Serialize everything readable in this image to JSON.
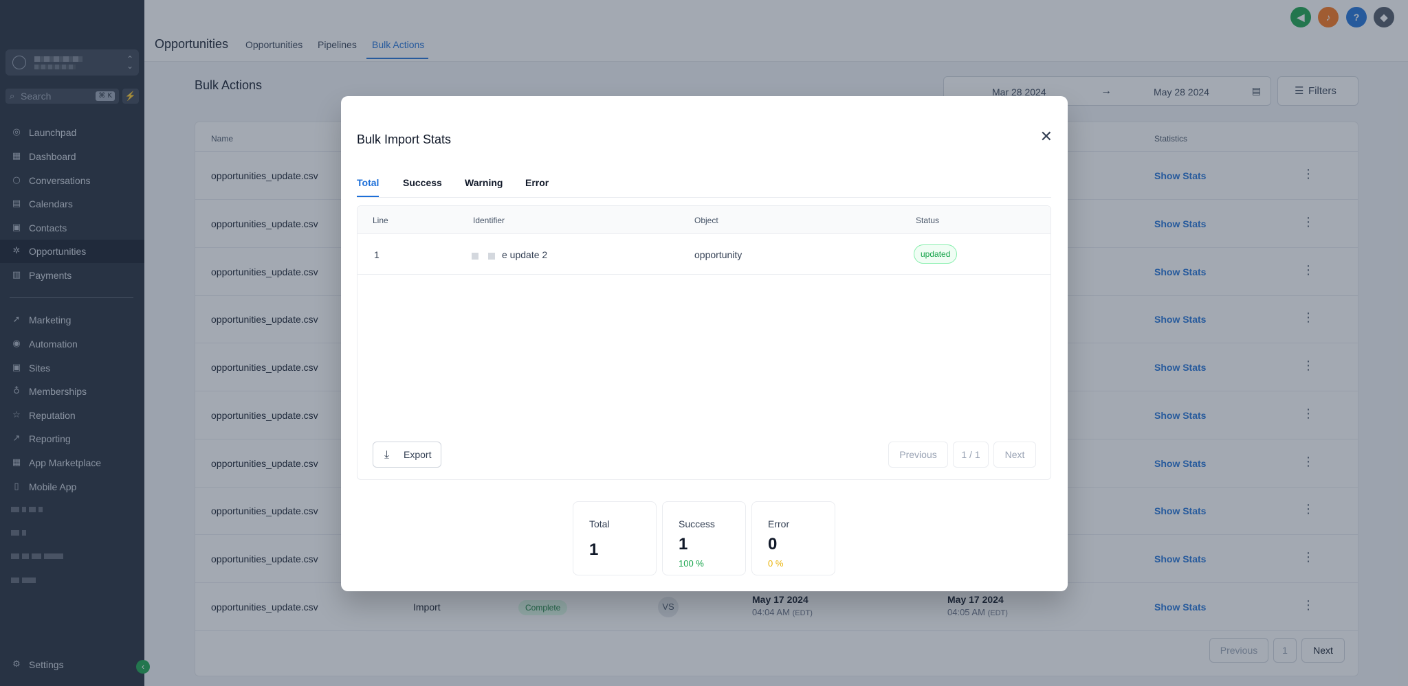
{
  "sidebar": {
    "search_placeholder": "Search",
    "search_shortcut": "⌘ K",
    "items": [
      {
        "label": "Launchpad",
        "icon": "rocket-icon"
      },
      {
        "label": "Dashboard",
        "icon": "dashboard-icon"
      },
      {
        "label": "Conversations",
        "icon": "chat-icon"
      },
      {
        "label": "Calendars",
        "icon": "calendar-icon"
      },
      {
        "label": "Contacts",
        "icon": "contacts-icon"
      },
      {
        "label": "Opportunities",
        "icon": "opportunities-icon",
        "active": true
      },
      {
        "label": "Payments",
        "icon": "payments-icon"
      },
      {
        "label": "Marketing",
        "icon": "marketing-icon"
      },
      {
        "label": "Automation",
        "icon": "automation-icon"
      },
      {
        "label": "Sites",
        "icon": "sites-icon"
      },
      {
        "label": "Memberships",
        "icon": "memberships-icon"
      },
      {
        "label": "Reputation",
        "icon": "star-icon"
      },
      {
        "label": "Reporting",
        "icon": "reporting-icon"
      },
      {
        "label": "App Marketplace",
        "icon": "grid-icon"
      },
      {
        "label": "Mobile App",
        "icon": "mobile-icon"
      }
    ],
    "settings_label": "Settings"
  },
  "header": {
    "page_title": "Opportunities",
    "tabs": [
      "Opportunities",
      "Pipelines",
      "Bulk Actions"
    ],
    "active_tab": "Bulk Actions",
    "icon_colors": {
      "megaphone": "#16a34a",
      "bell": "#f97316",
      "help": "#1d6fd8"
    }
  },
  "main": {
    "section_title": "Bulk Actions",
    "date_from": "Mar 28 2024",
    "date_to": "May 28 2024",
    "filters_label": "Filters",
    "columns": {
      "name": "Name",
      "statistics": "Statistics"
    },
    "rows": [
      {
        "name": "opportunities_update.csv",
        "stats": "Show Stats"
      },
      {
        "name": "opportunities_update.csv",
        "stats": "Show Stats"
      },
      {
        "name": "opportunities_update.csv",
        "stats": "Show Stats"
      },
      {
        "name": "opportunities_update.csv",
        "stats": "Show Stats"
      },
      {
        "name": "opportunities_update.csv",
        "stats": "Show Stats"
      },
      {
        "name": "opportunities_update.csv",
        "stats": "Show Stats"
      },
      {
        "name": "opportunities_update.csv",
        "stats": "Show Stats"
      },
      {
        "name": "opportunities_update.csv",
        "stats": "Show Stats"
      },
      {
        "name": "opportunities_update.csv",
        "stats": "Show Stats"
      },
      {
        "name": "opportunities_update.csv",
        "type": "Import",
        "status": "Complete",
        "user_initials": "VS",
        "created_date": "May 17 2024",
        "created_time": "04:04 AM",
        "completed_date": "May 17 2024",
        "completed_time": "04:05 AM",
        "timezone": "(EDT)",
        "stats": "Show Stats"
      }
    ],
    "pagination": {
      "previous": "Previous",
      "page": "1",
      "next": "Next"
    }
  },
  "modal": {
    "title": "Bulk Import Stats",
    "close_glyph": "✕",
    "tabs": [
      "Total",
      "Success",
      "Warning",
      "Error"
    ],
    "active_tab": "Total",
    "columns": [
      "Line",
      "Identifier",
      "Object",
      "Status"
    ],
    "rows": [
      {
        "line": "1",
        "identifier": "e update 2",
        "object": "opportunity",
        "status": "updated"
      }
    ],
    "export_label": "Export",
    "pagination": {
      "previous": "Previous",
      "page": "1 / 1",
      "next": "Next"
    },
    "stats": {
      "total": {
        "label": "Total",
        "value": "1"
      },
      "success": {
        "label": "Success",
        "value": "1",
        "percent": "100 %"
      },
      "error": {
        "label": "Error",
        "value": "0",
        "percent": "0 %"
      }
    },
    "colors": {
      "success": "#16a34a",
      "error": "#eab308"
    }
  }
}
